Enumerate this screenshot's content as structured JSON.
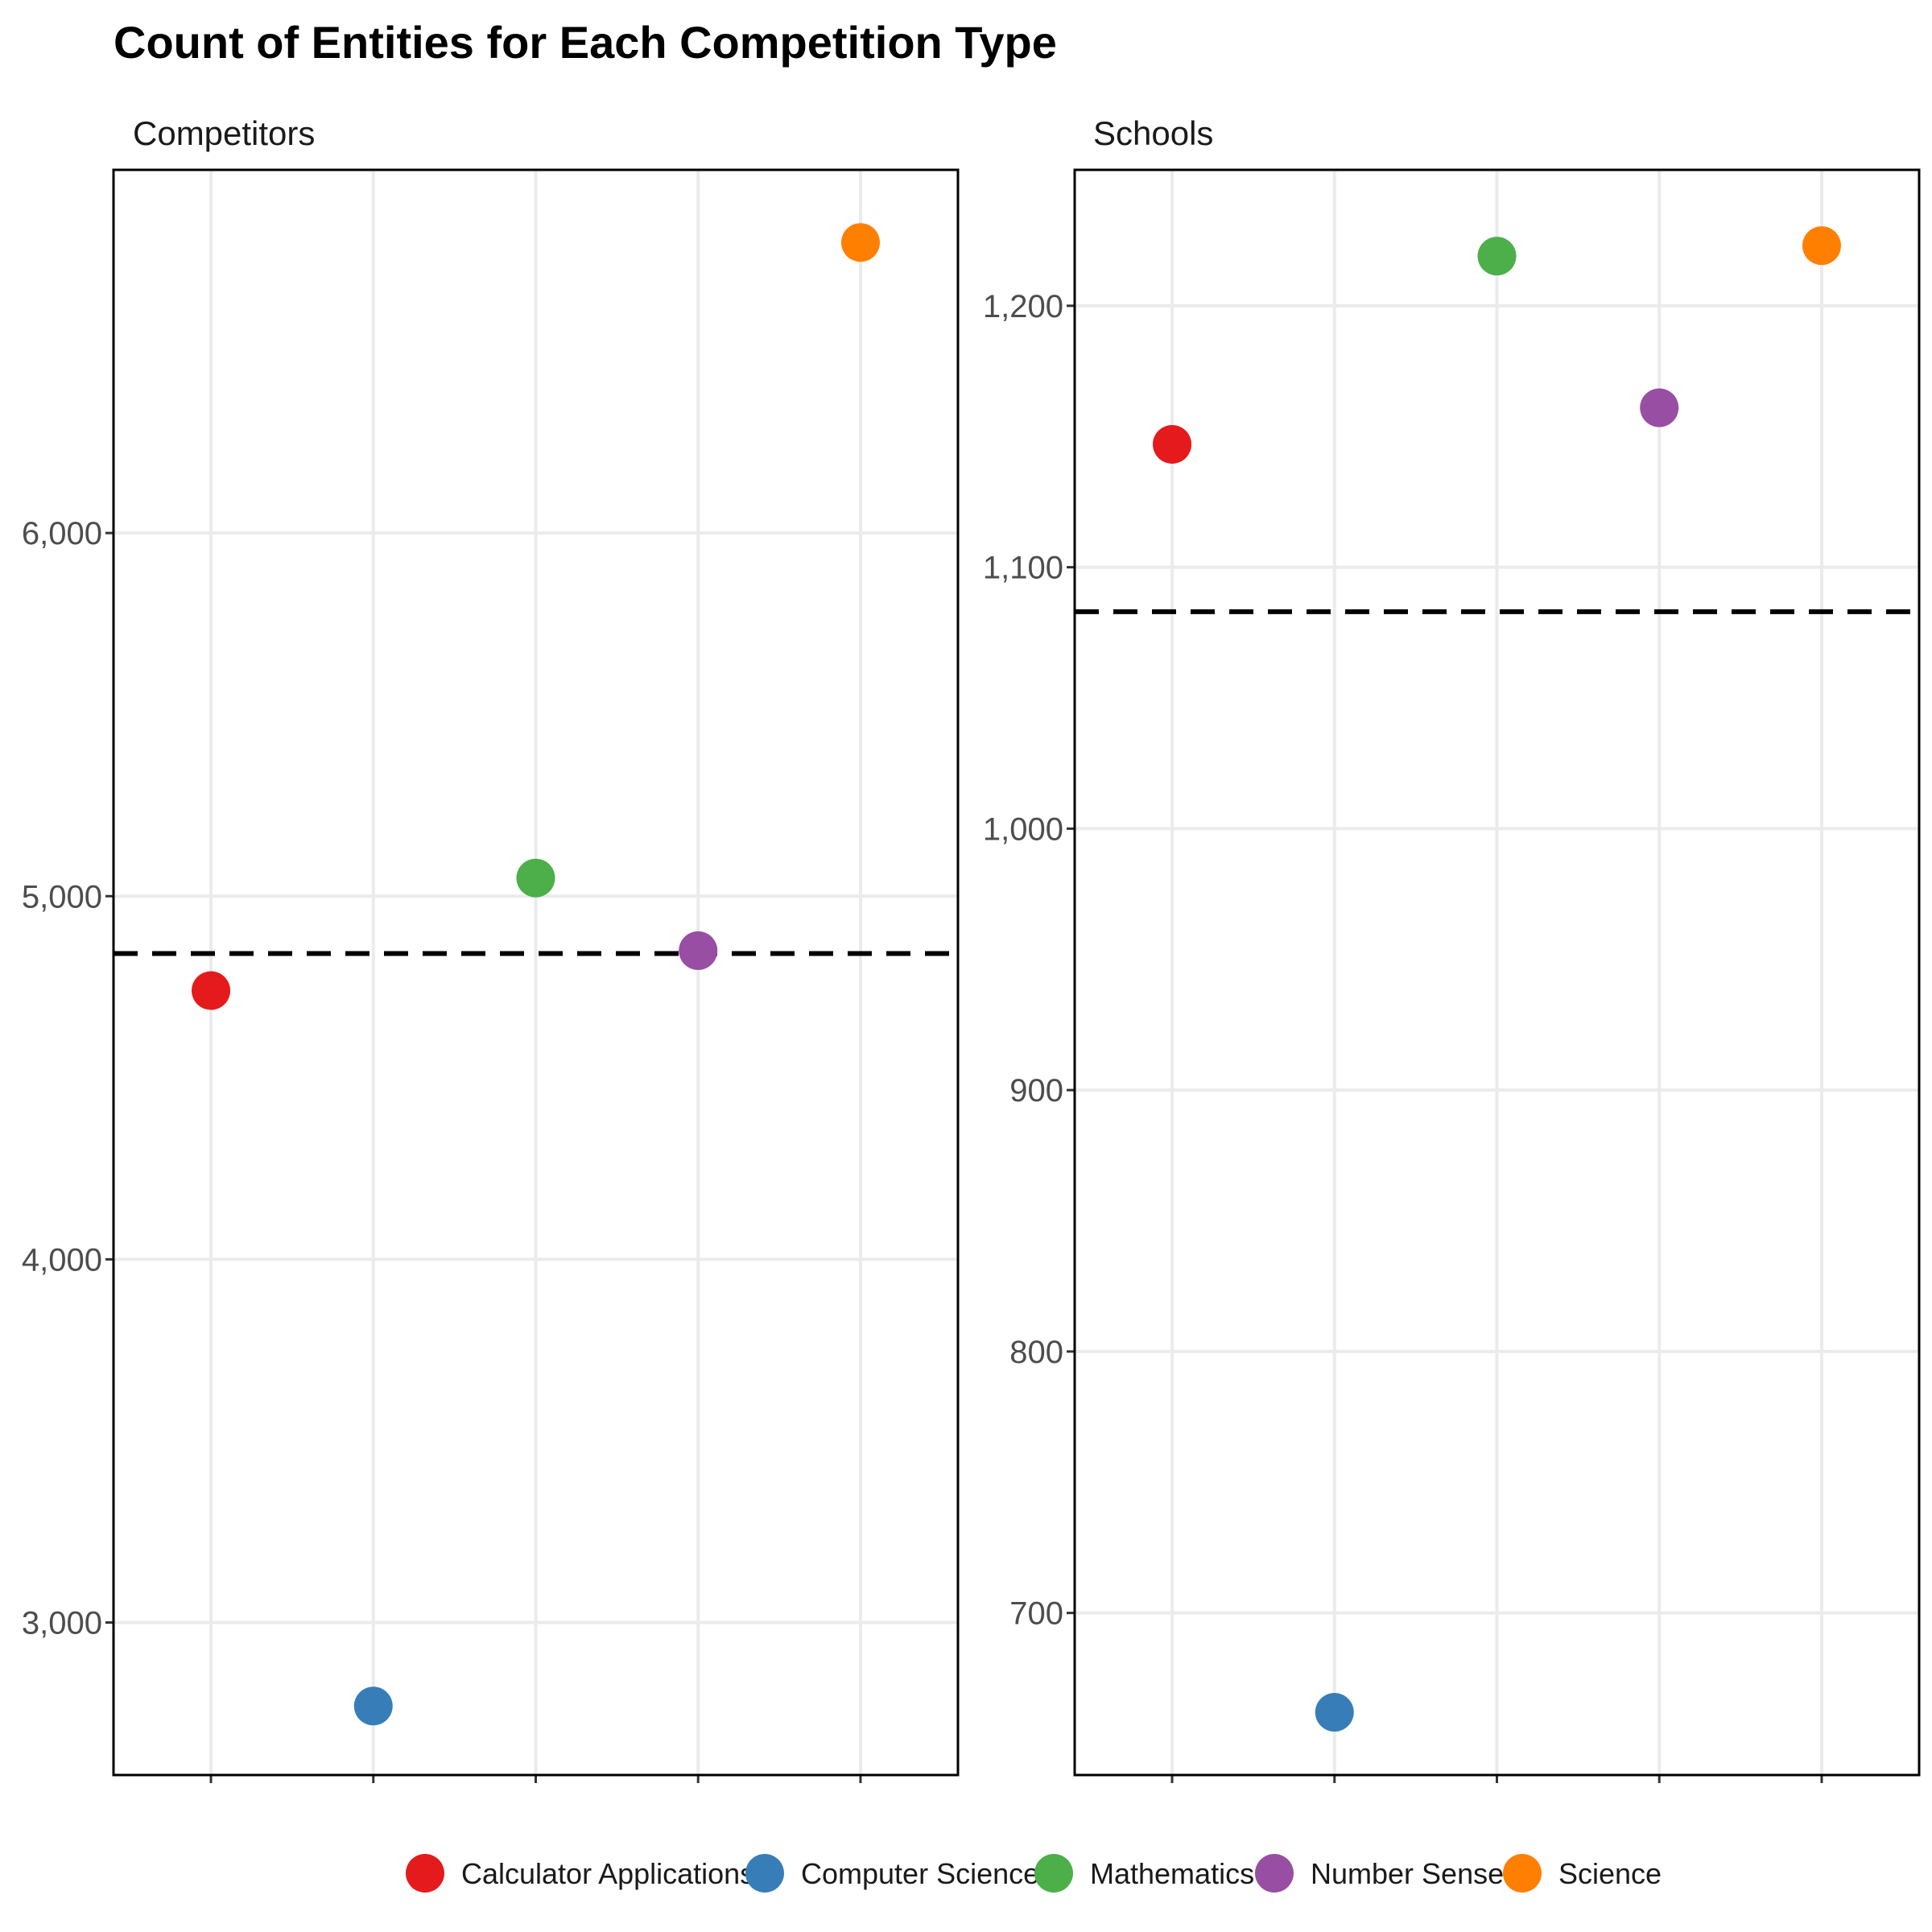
{
  "chart_data": {
    "type": "scatter",
    "title": "Count of Entities for Each Competition Type",
    "categories": [
      "Calculator Applications",
      "Computer Science",
      "Mathematics",
      "Number Sense",
      "Science"
    ],
    "colors": [
      "#E41A1C",
      "#377EB8",
      "#4DAF4A",
      "#984EA3",
      "#FF7F00"
    ],
    "legend": {
      "position": "bottom",
      "items": [
        {
          "label": "Calculator Applications",
          "color": "#E41A1C"
        },
        {
          "label": "Computer Science",
          "color": "#377EB8"
        },
        {
          "label": "Mathematics",
          "color": "#4DAF4A"
        },
        {
          "label": "Number Sense",
          "color": "#984EA3"
        },
        {
          "label": "Science",
          "color": "#FF7F00"
        }
      ]
    },
    "panels": [
      {
        "label": "Competitors",
        "values": [
          4740,
          2770,
          5050,
          4850,
          6800
        ],
        "mean_line": 4842,
        "ylim": [
          2580,
          7000
        ],
        "yticks": [
          3000,
          4000,
          5000,
          6000
        ],
        "ytick_labels": [
          "3,000",
          "4,000",
          "5,000",
          "6,000"
        ]
      },
      {
        "label": "Schools",
        "values": [
          1147,
          662,
          1219,
          1161,
          1223
        ],
        "mean_line": 1083,
        "ylim": [
          638,
          1252
        ],
        "yticks": [
          700,
          800,
          900,
          1000,
          1100,
          1200
        ],
        "ytick_labels": [
          "700",
          "800",
          "900",
          "1,000",
          "1,100",
          "1,200"
        ]
      }
    ],
    "grid": true,
    "xaxis_labels_shown": false
  }
}
